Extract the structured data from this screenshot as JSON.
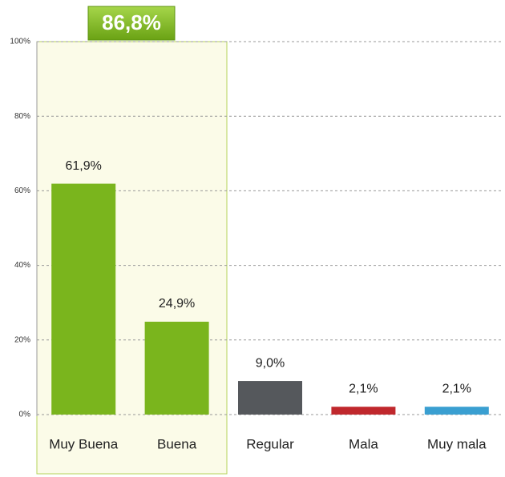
{
  "chart_data": {
    "type": "bar",
    "categories": [
      "Muy Buena",
      "Buena",
      "Regular",
      "Mala",
      "Muy mala"
    ],
    "values": [
      61.9,
      24.9,
      9.0,
      2.1,
      2.1
    ],
    "value_labels": [
      "61,9%",
      "24,9%",
      "9,0%",
      "2,1%",
      "2,1%"
    ],
    "colors": [
      "#7ab51d",
      "#7ab51d",
      "#55585c",
      "#c0282d",
      "#3a9fd1"
    ],
    "ylim": [
      0,
      100
    ],
    "yticks": [
      {
        "value": 0,
        "label": "0%"
      },
      {
        "value": 20,
        "label": "20%"
      },
      {
        "value": 40,
        "label": "40%"
      },
      {
        "value": 60,
        "label": "60%"
      },
      {
        "value": 80,
        "label": "80%"
      },
      {
        "value": 100,
        "label": "100%"
      }
    ],
    "grid": true,
    "annotation": "86,8%"
  }
}
